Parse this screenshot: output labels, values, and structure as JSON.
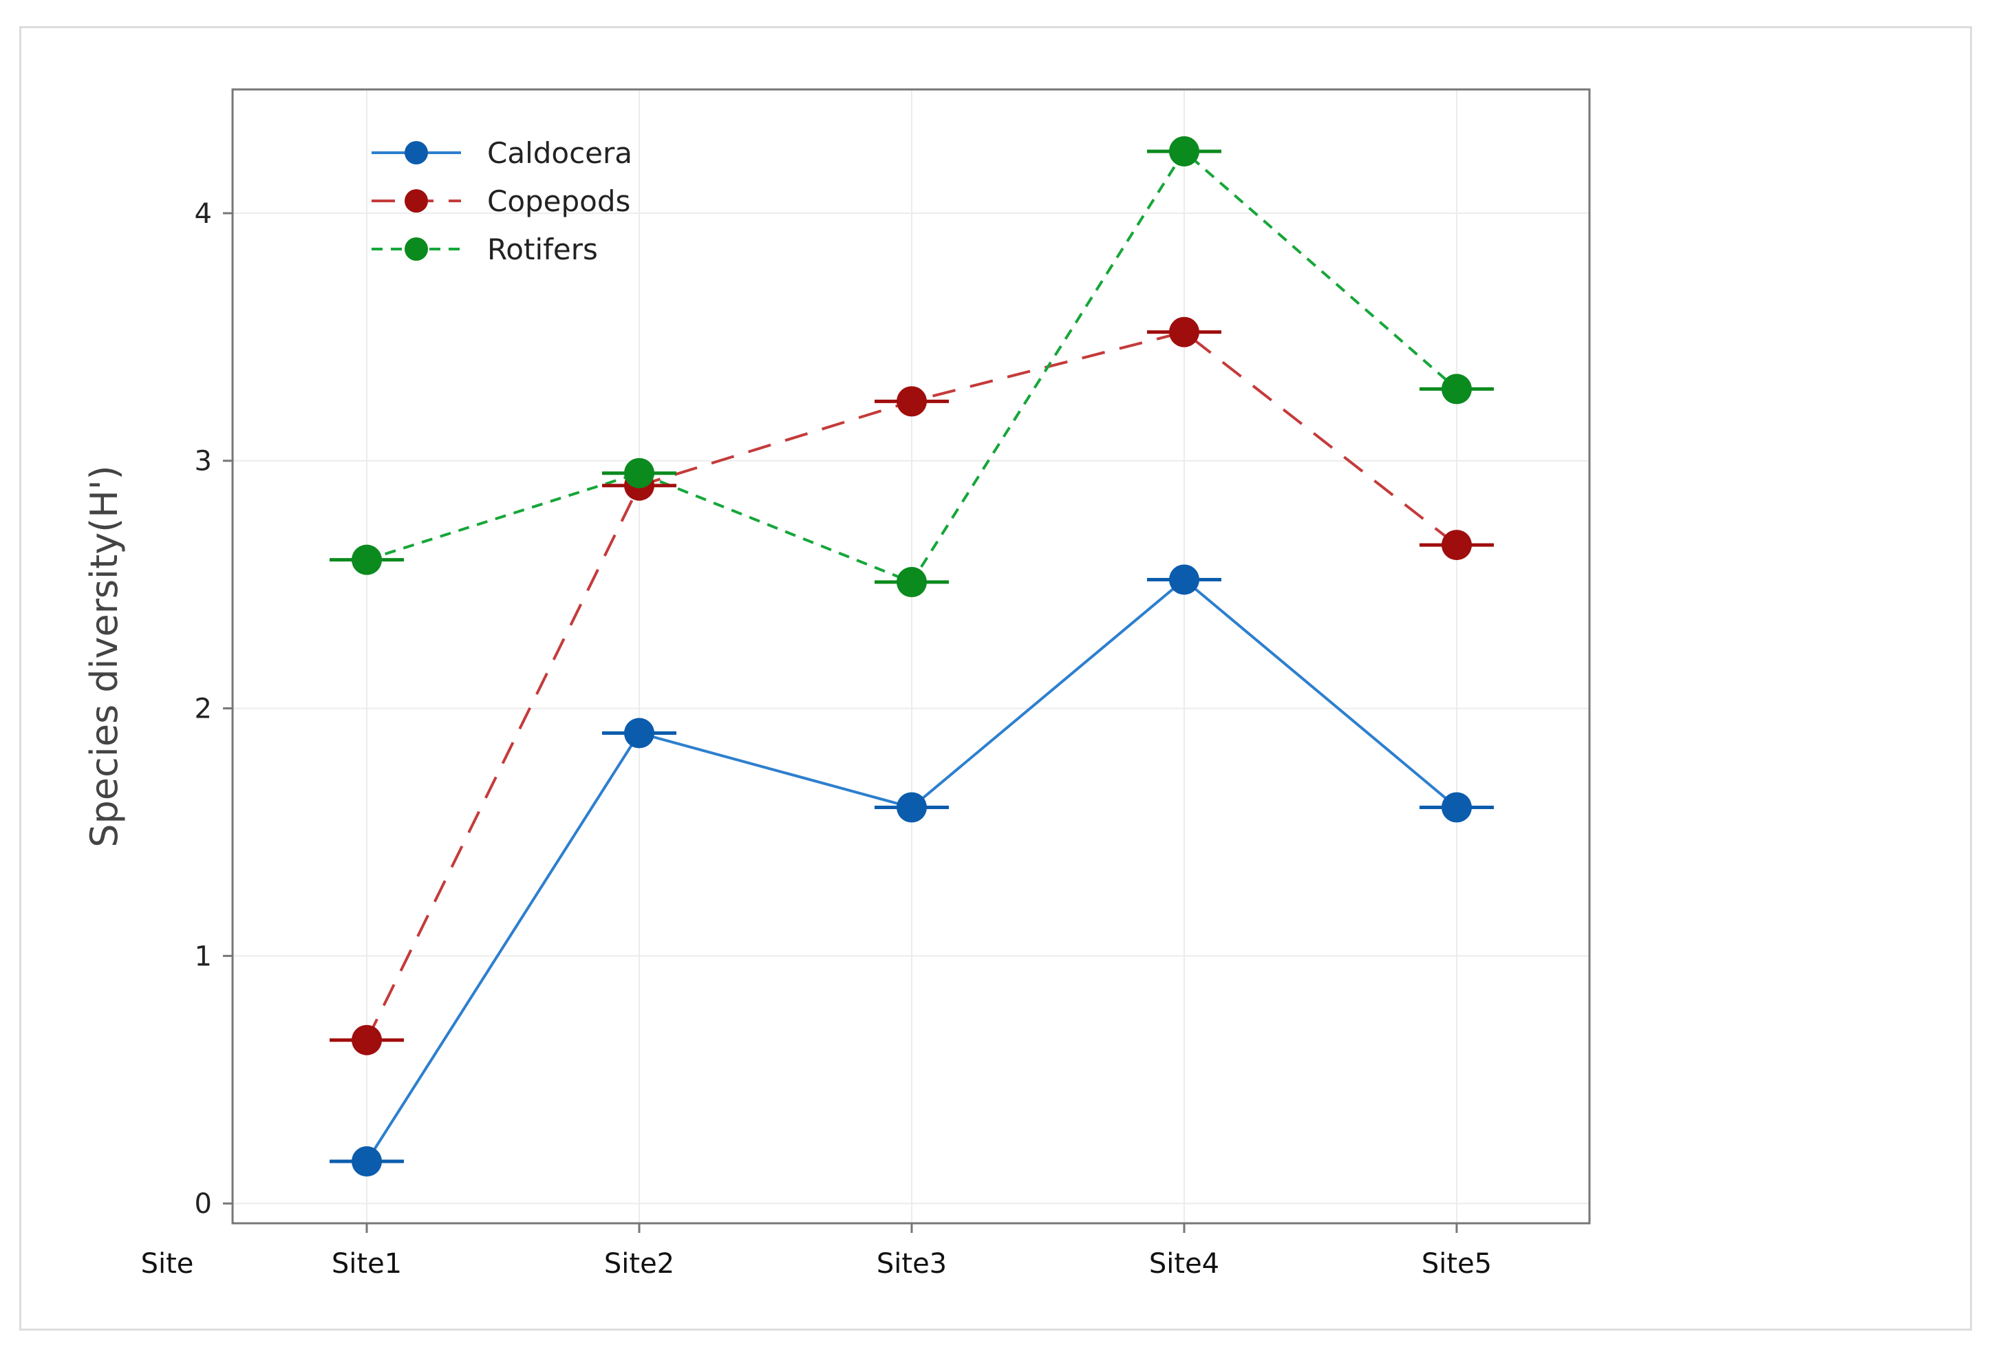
{
  "chart_data": {
    "type": "line",
    "title": "",
    "xlabel": "Site",
    "ylabel": "Species diversity(H')",
    "categories": [
      "Site1",
      "Site2",
      "Site3",
      "Site4",
      "Site5"
    ],
    "ylim": [
      -0.08,
      4.5
    ],
    "yticks": [
      0,
      1,
      2,
      3,
      4
    ],
    "grid": true,
    "legend_position": "top-left",
    "series": [
      {
        "name": "Caldocera",
        "values": [
          0.17,
          1.9,
          1.6,
          2.52,
          1.6
        ],
        "color": "#0b5cad",
        "line_color": "#2d7fcf",
        "dash": "solid"
      },
      {
        "name": "Copepods",
        "values": [
          0.66,
          2.9,
          3.24,
          3.52,
          2.66
        ],
        "color": "#a00d0d",
        "line_color": "#c53a3a",
        "dash": "long"
      },
      {
        "name": "Rotifers",
        "values": [
          2.6,
          2.95,
          2.51,
          4.25,
          3.29
        ],
        "color": "#0b8a1e",
        "line_color": "#16a63a",
        "dash": "short"
      }
    ]
  }
}
